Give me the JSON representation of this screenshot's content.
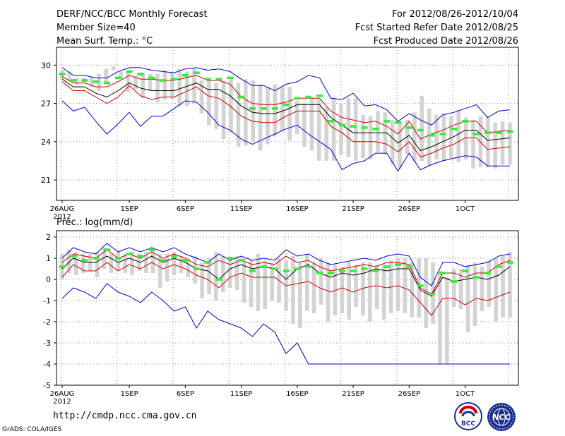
{
  "header": {
    "left": [
      "DERF/NCC/BCC Monthly Forecast",
      "Member Size=40",
      "Mean Surf. Temp.: °C"
    ],
    "right": [
      "For 2012/08/26-2012/10/04",
      "Fcst Started Refer Date 2012/08/25",
      "Fcst Produced Date 2012/08/26"
    ]
  },
  "footer": {
    "url": "http://cmdp.ncc.cma.gov.cn",
    "grads": "GrADS: COLA/IGES",
    "logo_bcc": "BCC",
    "logo_ncc": "NCC"
  },
  "colors": {
    "envelope": "#0000cc",
    "spread": "#cc0000",
    "mean": "#000000",
    "member": "#33ee33",
    "bar": "#d3d3d3"
  },
  "chart_data": [
    {
      "type": "line",
      "title": "Mean Surf. Temp.: °C",
      "xlabel": "",
      "ylabel": "",
      "ylim": [
        19.4,
        31.4
      ],
      "yticks": [
        21,
        24,
        27,
        30
      ],
      "grid": true,
      "x_days": 40,
      "x_ticks": [
        {
          "day": 0,
          "label": "26AUG",
          "sub": "2012"
        },
        {
          "day": 6,
          "label": "1SEP"
        },
        {
          "day": 11,
          "label": "6SEP"
        },
        {
          "day": 16,
          "label": "11SEP"
        },
        {
          "day": 21,
          "label": "16SEP"
        },
        {
          "day": 26,
          "label": "21SEP"
        },
        {
          "day": 31,
          "label": "26SEP"
        },
        {
          "day": 36,
          "label": "1OCT"
        }
      ],
      "series": [
        {
          "name": "max",
          "role": "envelope",
          "values": [
            29.8,
            29.2,
            29.2,
            29.0,
            29.0,
            29.5,
            29.8,
            29.8,
            29.6,
            29.5,
            29.4,
            29.7,
            29.8,
            29.6,
            29.7,
            29.5,
            28.9,
            28.4,
            28.4,
            28.0,
            28.5,
            28.7,
            29.2,
            29.0,
            27.4,
            27.3,
            27.8,
            26.8,
            26.9,
            26.5,
            25.6,
            26.2,
            25.7,
            25.3,
            26.1,
            26.3,
            26.6,
            26.9,
            25.9,
            26.4,
            26.5
          ]
        },
        {
          "name": "upper",
          "role": "spread",
          "values": [
            29.1,
            28.6,
            28.6,
            28.3,
            28.3,
            28.7,
            29.2,
            28.9,
            28.9,
            28.8,
            28.8,
            29.0,
            29.2,
            28.8,
            28.8,
            28.5,
            27.5,
            27.0,
            26.9,
            26.9,
            27.1,
            27.4,
            27.4,
            27.4,
            26.4,
            25.9,
            25.7,
            25.5,
            25.6,
            25.2,
            24.6,
            25.6,
            24.2,
            24.6,
            24.9,
            25.3,
            25.6,
            25.6,
            24.7,
            24.8,
            24.9
          ]
        },
        {
          "name": "mean",
          "role": "mean",
          "values": [
            28.9,
            28.3,
            28.3,
            27.8,
            27.5,
            28.0,
            28.6,
            28.2,
            28.0,
            28.0,
            28.0,
            28.3,
            28.6,
            28.1,
            28.1,
            27.6,
            26.8,
            26.3,
            26.2,
            26.2,
            26.5,
            26.9,
            26.9,
            26.9,
            25.9,
            25.3,
            24.7,
            24.7,
            24.7,
            24.7,
            23.9,
            24.5,
            23.3,
            23.6,
            24.0,
            24.4,
            24.9,
            24.9,
            24.1,
            24.2,
            24.3
          ]
        },
        {
          "name": "lower",
          "role": "spread",
          "values": [
            28.7,
            28.0,
            28.0,
            27.5,
            27.0,
            27.5,
            28.4,
            27.6,
            27.3,
            27.5,
            27.5,
            27.9,
            28.3,
            27.6,
            27.4,
            26.8,
            26.0,
            25.6,
            25.5,
            25.5,
            26.0,
            26.4,
            26.4,
            26.4,
            25.2,
            24.7,
            24.0,
            24.0,
            24.0,
            23.8,
            23.2,
            24.0,
            22.8,
            23.1,
            23.5,
            23.8,
            24.3,
            24.3,
            23.4,
            23.5,
            23.6
          ]
        },
        {
          "name": "min",
          "role": "envelope",
          "values": [
            27.2,
            26.4,
            26.7,
            25.6,
            24.6,
            25.4,
            26.3,
            25.2,
            26.0,
            26.0,
            26.6,
            27.2,
            27.1,
            26.3,
            25.3,
            24.9,
            24.2,
            23.8,
            24.2,
            24.6,
            25.0,
            25.3,
            24.6,
            24.0,
            23.4,
            21.8,
            22.3,
            22.5,
            23.1,
            23.1,
            21.7,
            23.1,
            21.8,
            22.2,
            22.5,
            22.7,
            22.9,
            22.8,
            22.1,
            22.1,
            22.1
          ]
        },
        {
          "name": "member",
          "role": "member",
          "values": [
            29.3,
            28.8,
            28.8,
            28.7,
            28.6,
            29.0,
            29.5,
            29.3,
            29.0,
            28.8,
            28.9,
            29.2,
            29.4,
            28.9,
            28.9,
            29.0,
            27.5,
            26.6,
            26.6,
            26.6,
            26.9,
            27.4,
            27.5,
            27.6,
            25.6,
            25.3,
            25.2,
            25.1,
            25.0,
            25.6,
            25.5,
            25.1,
            24.9,
            24.5,
            24.6,
            25.0,
            25.6,
            24.6,
            24.7,
            24.7,
            24.8
          ]
        }
      ],
      "bars": [
        [
          28.9,
          29.6
        ],
        [
          28.8,
          29.5
        ],
        [
          28.5,
          29.0
        ],
        [
          28.7,
          29.0
        ],
        [
          28.3,
          29.1
        ],
        [
          28.0,
          29.3
        ],
        [
          28.6,
          29.7
        ],
        [
          29.6,
          29.9
        ],
        [
          28.9,
          29.5
        ],
        [
          27.9,
          29.6
        ],
        [
          28.1,
          29.2
        ],
        [
          27.4,
          29.4
        ],
        [
          28.0,
          29.3
        ],
        [
          27.1,
          29.3
        ],
        [
          27.3,
          29.6
        ],
        [
          27.3,
          29.5
        ],
        [
          26.8,
          29.7
        ],
        [
          26.8,
          29.5
        ],
        [
          27.0,
          29.8
        ],
        [
          26.2,
          28.8
        ],
        [
          25.3,
          28.8
        ],
        [
          25.0,
          28.6
        ],
        [
          24.2,
          28.8
        ],
        [
          24.7,
          28.9
        ],
        [
          23.6,
          28.6
        ],
        [
          23.7,
          28.9
        ],
        [
          24.0,
          28.8
        ],
        [
          23.3,
          28.5
        ],
        [
          23.8,
          28.3
        ],
        [
          24.4,
          28.5
        ],
        [
          24.8,
          28.3
        ],
        [
          24.1,
          28.3
        ],
        [
          24.6,
          27.2
        ],
        [
          23.6,
          27.0
        ],
        [
          23.3,
          27.4
        ],
        [
          22.5,
          27.3
        ],
        [
          22.5,
          26.7
        ],
        [
          22.5,
          27.5
        ],
        [
          23.0,
          27.0
        ],
        [
          22.8,
          27.4
        ],
        [
          22.5,
          27.4
        ],
        [
          22.7,
          26.1
        ],
        [
          22.6,
          26.0
        ],
        [
          23.2,
          26.4
        ],
        [
          23.0,
          26.3
        ],
        [
          22.2,
          25.7
        ],
        [
          21.9,
          25.6
        ],
        [
          23.0,
          25.7
        ],
        [
          22.4,
          26.3
        ],
        [
          22.5,
          27.6
        ],
        [
          22.1,
          26.6
        ],
        [
          22.6,
          26.1
        ],
        [
          22.5,
          26.2
        ],
        [
          22.7,
          26.0
        ],
        [
          22.4,
          26.5
        ],
        [
          22.6,
          25.9
        ],
        [
          21.9,
          25.7
        ],
        [
          22.0,
          26.0
        ],
        [
          22.0,
          26.0
        ],
        [
          21.9,
          25.5
        ],
        [
          22.2,
          25.6
        ],
        [
          22.2,
          25.5
        ]
      ]
    },
    {
      "type": "line",
      "title": "Prec.: log(mm/d)",
      "xlabel": "",
      "ylabel": "",
      "ylim": [
        -5,
        2.3
      ],
      "yticks": [
        -5,
        -4,
        -3,
        -2,
        -1,
        0,
        1,
        2
      ],
      "grid": true,
      "x_days": 40,
      "x_ticks": [
        {
          "day": 0,
          "label": "26AUG",
          "sub": "2012"
        },
        {
          "day": 6,
          "label": "1SEP"
        },
        {
          "day": 11,
          "label": "6SEP"
        },
        {
          "day": 16,
          "label": "11SEP"
        },
        {
          "day": 21,
          "label": "16SEP"
        },
        {
          "day": 26,
          "label": "21SEP"
        },
        {
          "day": 31,
          "label": "26SEP"
        },
        {
          "day": 36,
          "label": "1OCT"
        }
      ],
      "series": [
        {
          "name": "max",
          "role": "envelope",
          "values": [
            1.0,
            1.5,
            1.3,
            1.2,
            1.7,
            1.3,
            1.5,
            1.3,
            1.5,
            1.3,
            1.5,
            1.2,
            1.0,
            0.8,
            1.2,
            0.9,
            1.1,
            0.9,
            1.0,
            0.9,
            1.4,
            1.1,
            1.2,
            0.9,
            0.7,
            0.8,
            0.9,
            1.0,
            0.9,
            1.1,
            1.2,
            1.1,
            0.1,
            -0.3,
            0.8,
            0.8,
            0.6,
            0.7,
            0.8,
            1.1,
            1.2
          ]
        },
        {
          "name": "upper",
          "role": "spread",
          "values": [
            0.8,
            1.2,
            1.1,
            1.0,
            1.4,
            1.0,
            1.2,
            1.0,
            1.3,
            1.0,
            1.2,
            1.0,
            0.7,
            0.6,
            0.9,
            0.7,
            0.9,
            0.7,
            0.8,
            0.7,
            1.1,
            0.8,
            0.9,
            0.6,
            0.4,
            0.5,
            0.6,
            0.7,
            0.6,
            0.8,
            0.8,
            0.7,
            -0.4,
            -0.7,
            0.3,
            0.3,
            0.1,
            0.3,
            0.3,
            0.7,
            0.9
          ]
        },
        {
          "name": "mean",
          "role": "mean",
          "values": [
            0.5,
            1.0,
            0.8,
            0.8,
            1.1,
            0.8,
            1.0,
            0.8,
            1.1,
            0.8,
            1.0,
            0.8,
            0.5,
            0.4,
            0.0,
            0.5,
            0.7,
            0.5,
            0.6,
            0.5,
            0.0,
            0.5,
            0.7,
            0.3,
            0.1,
            0.3,
            0.2,
            0.3,
            0.5,
            0.4,
            0.5,
            0.5,
            -0.5,
            -0.8,
            0.1,
            -0.1,
            0.0,
            0.1,
            0.0,
            0.2,
            0.6
          ]
        },
        {
          "name": "lower",
          "role": "spread",
          "values": [
            0.1,
            0.7,
            0.4,
            0.4,
            0.8,
            0.4,
            0.7,
            0.5,
            0.8,
            0.5,
            0.7,
            0.5,
            0.2,
            0.0,
            -0.4,
            0.1,
            0.3,
            0.1,
            0.1,
            0.1,
            -0.3,
            -0.2,
            -0.1,
            -0.4,
            -0.6,
            -0.4,
            -0.6,
            -0.4,
            -0.3,
            -0.4,
            -0.3,
            -0.5,
            -1.1,
            -1.7,
            -0.9,
            -0.9,
            -1.2,
            -0.9,
            -1.0,
            -0.8,
            -0.6
          ]
        },
        {
          "name": "min",
          "role": "envelope",
          "values": [
            -0.9,
            -0.4,
            -0.6,
            -0.9,
            -0.2,
            -0.6,
            -0.8,
            -1.1,
            -0.6,
            -1.0,
            -1.5,
            -1.3,
            -2.3,
            -1.5,
            -1.9,
            -2.1,
            -2.3,
            -2.7,
            -2.1,
            -2.5,
            -3.5,
            -3.0,
            -4.0,
            -4.0,
            -4.0,
            -4.0,
            -4.0,
            -4.0,
            -4.0,
            -4.0,
            -4.0,
            -4.0,
            -4.0,
            -4.0,
            -4.0,
            -4.0,
            -4.0,
            -4.0,
            -4.0,
            -4.0,
            -4.0
          ]
        },
        {
          "name": "member",
          "role": "member",
          "values": [
            0.6,
            1.1,
            0.9,
            1.0,
            1.4,
            1.0,
            1.2,
            1.1,
            1.4,
            0.9,
            1.1,
            0.9,
            0.5,
            0.8,
            0.0,
            1.0,
            0.9,
            0.4,
            0.6,
            0.5,
            0.4,
            0.5,
            0.6,
            0.3,
            0.3,
            0.4,
            0.4,
            0.5,
            0.4,
            0.6,
            0.7,
            0.6,
            -0.3,
            -0.7,
            0.3,
            -0.1,
            0.4,
            0.1,
            0.3,
            0.6,
            0.8
          ]
        }
      ],
      "bars": [
        [
          0.0,
          1.2
        ],
        [
          0.3,
          1.4
        ],
        [
          0.2,
          1.3
        ],
        [
          0.3,
          1.2
        ],
        [
          0.4,
          1.2
        ],
        [
          0.1,
          1.3
        ],
        [
          0.5,
          1.5
        ],
        [
          0.3,
          1.2
        ],
        [
          0.4,
          1.3
        ],
        [
          0.3,
          1.2
        ],
        [
          0.2,
          1.3
        ],
        [
          0.4,
          1.2
        ],
        [
          0.3,
          1.3
        ],
        [
          0.3,
          1.4
        ],
        [
          -0.4,
          1.2
        ],
        [
          -0.1,
          1.2
        ],
        [
          0.2,
          1.3
        ],
        [
          0.3,
          1.1
        ],
        [
          0.1,
          1.0
        ],
        [
          -0.2,
          1.1
        ],
        [
          -0.9,
          0.8
        ],
        [
          -0.7,
          1.0
        ],
        [
          -1.0,
          1.3
        ],
        [
          -0.6,
          1.1
        ],
        [
          -0.4,
          0.9
        ],
        [
          -0.5,
          1.1
        ],
        [
          -1.1,
          1.0
        ],
        [
          -1.3,
          0.9
        ],
        [
          -1.5,
          1.2
        ],
        [
          -1.4,
          0.9
        ],
        [
          -1.0,
          0.8
        ],
        [
          -1.1,
          1.0
        ],
        [
          -1.5,
          0.9
        ],
        [
          -2.1,
          1.1
        ],
        [
          -2.3,
          0.8
        ],
        [
          -1.5,
          1.2
        ],
        [
          -1.6,
          0.8
        ],
        [
          -1.2,
          1.0
        ],
        [
          -2.0,
          0.8
        ],
        [
          -1.7,
          0.7
        ],
        [
          -1.6,
          0.6
        ],
        [
          -1.9,
          0.8
        ],
        [
          -1.3,
          0.7
        ],
        [
          -1.7,
          0.8
        ],
        [
          -2.0,
          0.8
        ],
        [
          -1.4,
          0.7
        ],
        [
          -1.9,
          0.7
        ],
        [
          -1.6,
          0.9
        ],
        [
          -1.5,
          1.0
        ],
        [
          -1.6,
          1.0
        ],
        [
          -1.8,
          0.8
        ],
        [
          -1.8,
          1.0
        ],
        [
          -2.3,
          1.0
        ],
        [
          -2.1,
          0.8
        ],
        [
          -4.0,
          0.4
        ],
        [
          -4.0,
          0.1
        ],
        [
          -1.3,
          0.5
        ],
        [
          -1.4,
          0.5
        ],
        [
          -2.5,
          0.7
        ],
        [
          -2.2,
          0.8
        ],
        [
          -1.5,
          0.6
        ],
        [
          -1.3,
          0.9
        ],
        [
          -2.0,
          1.0
        ],
        [
          -1.8,
          1.1
        ],
        [
          -1.8,
          1.3
        ]
      ]
    }
  ]
}
